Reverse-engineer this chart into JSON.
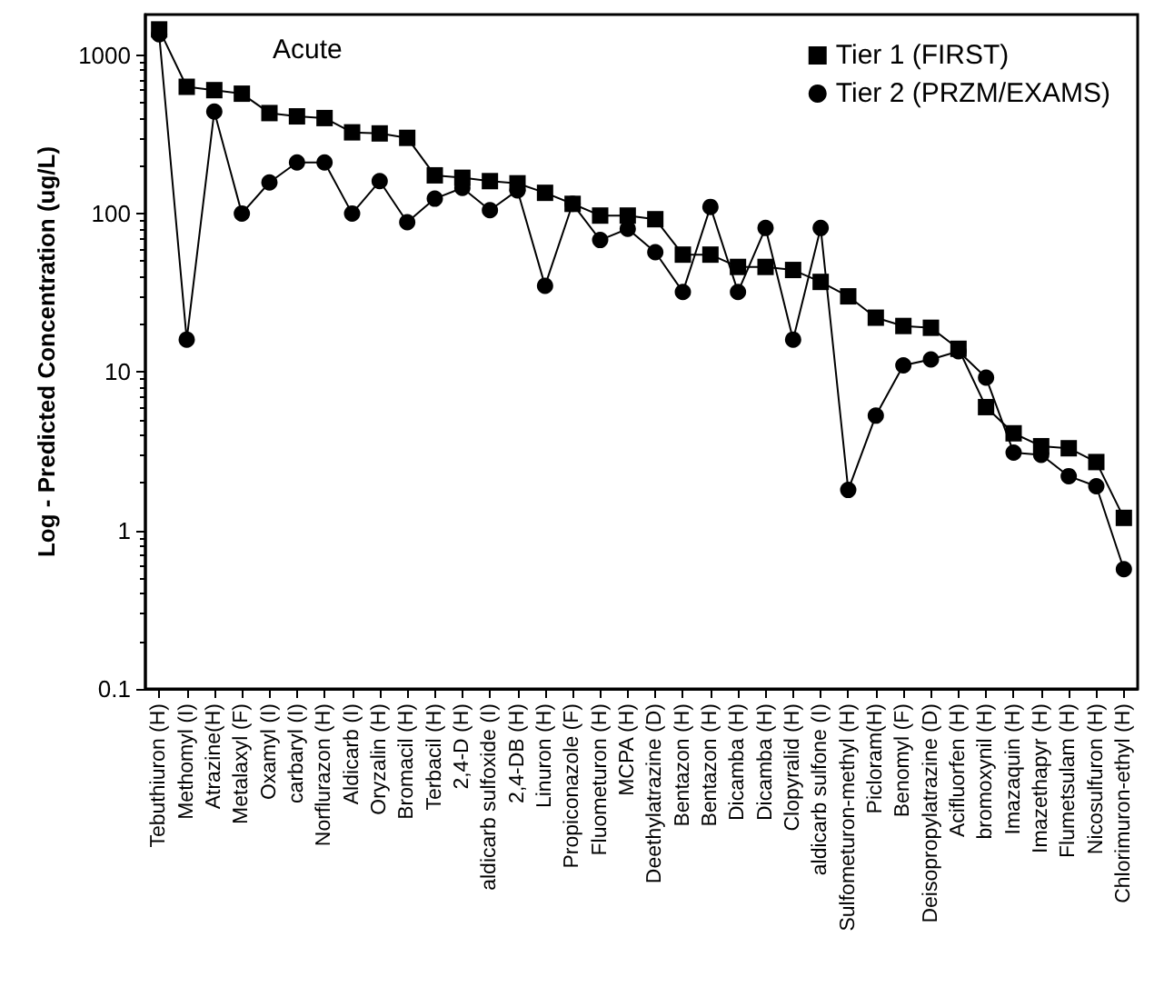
{
  "chart_data": {
    "type": "line",
    "ylabel": "Log - Predicted Concentration (ug/L)",
    "annotations": [
      "Acute"
    ],
    "categories": [
      "Tebuthiuron (H)",
      "Methomyl (I)",
      "Atrazine(H)",
      "Metalaxyl (F)",
      "Oxamyl (I)",
      "carbaryl (I)",
      "Norflurazon (H)",
      "Aldicarb (I)",
      "Oryzalin (H)",
      "Bromacil (H)",
      "Terbacil (H)",
      "2,4-D (H)",
      "aldicarb sulfoxide (I)",
      "2,4-DB (H)",
      "Linuron (H)",
      "Propiconazole (F)",
      "Fluometuron (H)",
      "MCPA (H)",
      "Deethylatrazine (D)",
      "Bentazon (H)",
      "Bentazon (H)",
      "Dicamba (H)",
      "Dicamba (H)",
      "Clopyralid (H)",
      "aldicarb sulfone (I)",
      "Sulfometuron-methyl (H)",
      "Picloram(H)",
      "Benomyl (F)",
      "Deisopropylatrazine (D)",
      "Acifluorfen (H)",
      "bromoxynil (H)",
      "Imazaquin (H)",
      "Imazethapyr (H)",
      "Flumetsulam (H)",
      "Nicosulfuron (H)",
      "Chlorimuron-ethyl (H)"
    ],
    "series": [
      {
        "name": "Tier 1 (FIRST)",
        "color": "#000000",
        "marker": "square",
        "values": [
          1450,
          630,
          600,
          570,
          430,
          410,
          400,
          325,
          320,
          300,
          174,
          168,
          160,
          155,
          135,
          115,
          97,
          97,
          92,
          55,
          55,
          46,
          46,
          44,
          37,
          30,
          22,
          19.5,
          19,
          14,
          6,
          4.1,
          3.4,
          3.3,
          2.7,
          1.2
        ]
      },
      {
        "name": "Tier 2 (PRZM/EXAMS)",
        "color": "#000000",
        "marker": "circle",
        "values": [
          1350,
          16,
          440,
          100,
          157,
          210,
          210,
          100,
          160,
          88,
          124,
          145,
          105,
          140,
          35,
          115,
          68,
          80,
          57,
          32,
          110,
          32,
          81,
          16,
          81,
          1.8,
          5.3,
          11,
          12,
          13.5,
          9.2,
          3.1,
          3,
          2.2,
          1.9,
          0.57
        ]
      }
    ],
    "log": "y",
    "ylim": [
      0.1,
      1800
    ],
    "yticks": [
      0.1,
      1,
      10,
      100,
      1000
    ],
    "grid": false,
    "legend": "top right",
    "line_style": "solid"
  }
}
